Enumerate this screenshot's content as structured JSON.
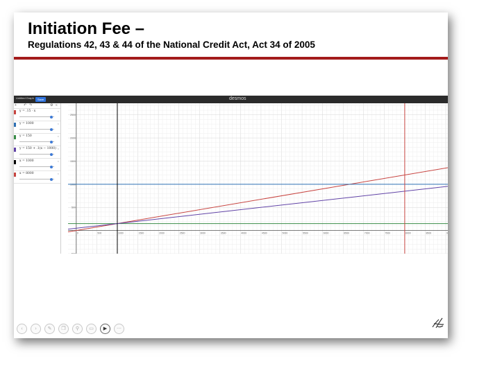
{
  "slide": {
    "title": "Initiation Fee –",
    "subtitle": "Regulations 42, 43 & 44 of the National Credit Act, Act 34 of 2005",
    "accent_color": "#a31b1b"
  },
  "desmos": {
    "graph_title": "Untitled Graph",
    "save_label": "Save",
    "logo_text": "desmos",
    "expressions": [
      {
        "text": "y = .15 · x",
        "color": "#c74440"
      },
      {
        "text": "y = 1000",
        "color": "#2d70b3"
      },
      {
        "text": "y = 150",
        "color": "#388c46"
      },
      {
        "text": "y = 150 + .1(x − 1000)",
        "color": "#6042a6"
      },
      {
        "text": "x = 1000",
        "color": "#000000"
      },
      {
        "text": "x = 8000",
        "color": "#c74440"
      }
    ],
    "x_ticks": [
      "0",
      "500",
      "1000",
      "1500",
      "2000",
      "2500",
      "3000",
      "3500",
      "4000",
      "4500",
      "5000",
      "5500",
      "6000",
      "6500",
      "7000",
      "7500",
      "8000",
      "8500",
      "9000"
    ],
    "y_ticks": [
      "2500",
      "2000",
      "1500",
      "1000",
      "500",
      "0",
      "-500"
    ]
  },
  "controls": {
    "icons": [
      "prev-icon",
      "next-icon",
      "pen-icon",
      "pages-icon",
      "zoom-icon",
      "slides-icon",
      "video-icon",
      "more-icon"
    ],
    "glyphs": [
      "‹",
      "›",
      "✎",
      "❐",
      "⚲",
      "▭",
      "▶",
      "⋯"
    ]
  }
}
